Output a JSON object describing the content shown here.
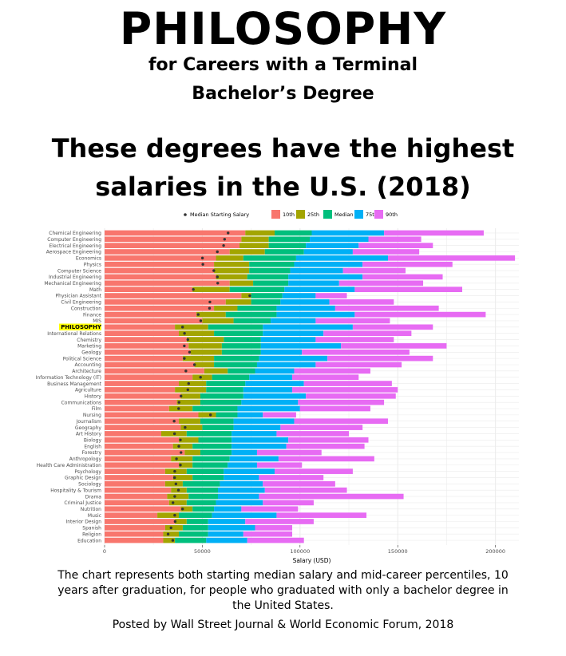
{
  "header": {
    "title": "PHILOSOPHY",
    "subtitle_line1": "for Careers with a Terminal",
    "subtitle_line2": "Bachelor’s Degree",
    "headline_line1": "These degrees have the highest",
    "headline_line2": "salaries in the U.S. (2018)"
  },
  "caption": {
    "line1": "The chart represents both starting median salary and mid-career percentiles, 10",
    "line2": "years after graduation, for people who graduated with only a bachelor degree in",
    "line3": "the United States.",
    "line4": "Posted by Wall Street Journal & World Economic Forum, 2018"
  },
  "chart_data": {
    "type": "bar",
    "orientation": "horizontal",
    "stacked": true,
    "xlabel": "Salary (USD)",
    "ylabel": "",
    "xlim": [
      0,
      212000
    ],
    "xticks": [
      0,
      50000,
      100000,
      150000,
      200000
    ],
    "xtick_labels": [
      "0",
      "50000",
      "100000",
      "150000",
      "200000"
    ],
    "grid": true,
    "legend_position": "top",
    "highlight": "PHILOSOPHY",
    "colors": {
      "10th": "#F8766D",
      "25th": "#A3A500",
      "Median": "#00BF7D",
      "75th": "#00B0F6",
      "90th": "#E76BF3",
      "highlight_bg": "#FFFF00"
    },
    "legend": {
      "marker": "Median Starting Salary",
      "entries": [
        "10th",
        "25th",
        "Median",
        "75th",
        "90th"
      ]
    },
    "series_keys": [
      "p10",
      "p25",
      "median",
      "p75",
      "p90"
    ],
    "categories": [
      "Chemical Engineering",
      "Computer Engineering",
      "Electrical Engineering",
      "Aerospace Engineering",
      "Economics",
      "Physics",
      "Computer Science",
      "Industrial Engineering",
      "Mechanical Engineering",
      "Math",
      "Physician Assistant",
      "Civil Engineering",
      "Construction",
      "Finance",
      "MIS",
      "PHILOSOPHY",
      "International Relations",
      "Chemistry",
      "Marketing",
      "Geology",
      "Political Science",
      "Accounting",
      "Architecture",
      "Information Technology (IT)",
      "Business Management",
      "Agriculture",
      "History",
      "Communications",
      "Film",
      "Nursing",
      "Journalism",
      "Geography",
      "Art History",
      "Biology",
      "English",
      "Forestry",
      "Anthropology",
      "Health Care Administration",
      "Psychology",
      "Graphic Design",
      "Sociology",
      "Hospitality & Tourism",
      "Drama",
      "Criminal Justice",
      "Nutrition",
      "Music",
      "Interior Design",
      "Spanish",
      "Religion",
      "Education"
    ],
    "rows": [
      {
        "p10": 72000,
        "p25": 87000,
        "median": 106000,
        "p75": 143000,
        "p90": 194000,
        "start": 63200
      },
      {
        "p10": 70000,
        "p25": 84000,
        "median": 105000,
        "p75": 135000,
        "p90": 162000,
        "start": 61400
      },
      {
        "p10": 69000,
        "p25": 84000,
        "median": 103000,
        "p75": 130000,
        "p90": 168000,
        "start": 60900
      },
      {
        "p10": 64000,
        "p25": 82000,
        "median": 102000,
        "p75": 127000,
        "p90": 161000,
        "start": 57700
      },
      {
        "p10": 57000,
        "p25": 71000,
        "median": 98000,
        "p75": 145000,
        "p90": 210000,
        "start": 50100
      },
      {
        "p10": 56000,
        "p25": 74000,
        "median": 97000,
        "p75": 132000,
        "p90": 178000,
        "start": 50300
      },
      {
        "p10": 56000,
        "p25": 74000,
        "median": 95000,
        "p75": 122000,
        "p90": 154000,
        "start": 55900
      },
      {
        "p10": 57000,
        "p25": 73000,
        "median": 94000,
        "p75": 132000,
        "p90": 173000,
        "start": 57700
      },
      {
        "p10": 64000,
        "p25": 76000,
        "median": 94000,
        "p75": 120000,
        "p90": 163000,
        "start": 57900
      },
      {
        "p10": 45000,
        "p25": 64000,
        "median": 92000,
        "p75": 128000,
        "p90": 183000,
        "start": 45400
      },
      {
        "p10": 70000,
        "p25": 75000,
        "median": 91000,
        "p75": 108000,
        "p90": 124000,
        "start": 74300
      },
      {
        "p10": 62000,
        "p25": 75000,
        "median": 90000,
        "p75": 115000,
        "p90": 148000,
        "start": 53900
      },
      {
        "p10": 56000,
        "p25": 68000,
        "median": 88000,
        "p75": 118000,
        "p90": 171000,
        "start": 53700
      },
      {
        "p10": 47000,
        "p25": 62000,
        "median": 88000,
        "p75": 128000,
        "p90": 195000,
        "start": 47900
      },
      {
        "p10": 50000,
        "p25": 66000,
        "median": 85000,
        "p75": 108000,
        "p90": 146000,
        "start": 49200
      },
      {
        "p10": 36000,
        "p25": 53000,
        "median": 81000,
        "p75": 127000,
        "p90": 168000,
        "start": 39900
      },
      {
        "p10": 38000,
        "p25": 56000,
        "median": 81000,
        "p75": 112000,
        "p90": 157000,
        "start": 40900
      },
      {
        "p10": 42000,
        "p25": 61000,
        "median": 80000,
        "p75": 108000,
        "p90": 148000,
        "start": 42600
      },
      {
        "p10": 43000,
        "p25": 60000,
        "median": 80000,
        "p75": 121000,
        "p90": 175000,
        "start": 40800
      },
      {
        "p10": 44000,
        "p25": 60000,
        "median": 80000,
        "p75": 101000,
        "p90": 156000,
        "start": 43500
      },
      {
        "p10": 40000,
        "p25": 56000,
        "median": 79000,
        "p75": 114000,
        "p90": 168000,
        "start": 40800
      },
      {
        "p10": 46000,
        "p25": 56000,
        "median": 78000,
        "p75": 108000,
        "p90": 152000,
        "start": 46000
      },
      {
        "p10": 51000,
        "p25": 63000,
        "median": 77000,
        "p75": 97000,
        "p90": 136000,
        "start": 41600
      },
      {
        "p10": 45000,
        "p25": 55000,
        "median": 74000,
        "p75": 96000,
        "p90": 130000,
        "start": 49100
      },
      {
        "p10": 38000,
        "p25": 52000,
        "median": 72000,
        "p75": 102000,
        "p90": 147000,
        "start": 43000
      },
      {
        "p10": 36000,
        "p25": 52000,
        "median": 71000,
        "p75": 96000,
        "p90": 150000,
        "start": 42600
      },
      {
        "p10": 39000,
        "p25": 49000,
        "median": 71000,
        "p75": 103000,
        "p90": 149000,
        "start": 39100
      },
      {
        "p10": 37000,
        "p25": 49000,
        "median": 70000,
        "p75": 99000,
        "p90": 143000,
        "start": 38100
      },
      {
        "p10": 33000,
        "p25": 45000,
        "median": 68000,
        "p75": 100000,
        "p90": 136000,
        "start": 37900
      },
      {
        "p10": 48000,
        "p25": 57000,
        "median": 68000,
        "p75": 81000,
        "p90": 98000,
        "start": 54200
      },
      {
        "p10": 38000,
        "p25": 49000,
        "median": 66000,
        "p75": 97000,
        "p90": 145000,
        "start": 35600
      },
      {
        "p10": 39000,
        "p25": 50000,
        "median": 66000,
        "p75": 90000,
        "p90": 132000,
        "start": 41200
      },
      {
        "p10": 29000,
        "p25": 42000,
        "median": 65000,
        "p75": 88000,
        "p90": 125000,
        "start": 35800
      },
      {
        "p10": 38000,
        "p25": 48000,
        "median": 65000,
        "p75": 94000,
        "p90": 135000,
        "start": 38800
      },
      {
        "p10": 35000,
        "p25": 45000,
        "median": 65000,
        "p75": 93000,
        "p90": 133000,
        "start": 38000
      },
      {
        "p10": 41000,
        "p25": 49000,
        "median": 65000,
        "p75": 78000,
        "p90": 111000,
        "start": 39100
      },
      {
        "p10": 34000,
        "p25": 45000,
        "median": 64000,
        "p75": 89000,
        "p90": 138000,
        "start": 36800
      },
      {
        "p10": 38000,
        "p25": 45000,
        "median": 63000,
        "p75": 78000,
        "p90": 101000,
        "start": 38800
      },
      {
        "p10": 31000,
        "p25": 42000,
        "median": 61000,
        "p75": 87000,
        "p90": 127000,
        "start": 35900
      },
      {
        "p10": 35000,
        "p25": 45000,
        "median": 61000,
        "p75": 79000,
        "p90": 112000,
        "start": 35800
      },
      {
        "p10": 31000,
        "p25": 40000,
        "median": 59000,
        "p75": 81000,
        "p90": 118000,
        "start": 36500
      },
      {
        "p10": 34000,
        "p25": 42000,
        "median": 58000,
        "p75": 82000,
        "p90": 124000,
        "start": 37800
      },
      {
        "p10": 32000,
        "p25": 43000,
        "median": 58000,
        "p75": 79000,
        "p90": 153000,
        "start": 35900
      },
      {
        "p10": 33000,
        "p25": 42000,
        "median": 57000,
        "p75": 81000,
        "p90": 107000,
        "start": 35000
      },
      {
        "p10": 39000,
        "p25": 45000,
        "median": 56000,
        "p75": 70000,
        "p90": 99000,
        "start": 39900
      },
      {
        "p10": 27000,
        "p25": 38000,
        "median": 55000,
        "p75": 88000,
        "p90": 134000,
        "start": 35900
      },
      {
        "p10": 36000,
        "p25": 42000,
        "median": 53000,
        "p75": 72000,
        "p90": 107000,
        "start": 36100
      },
      {
        "p10": 31000,
        "p25": 40000,
        "median": 53000,
        "p75": 77000,
        "p90": 96000,
        "start": 34000
      },
      {
        "p10": 30000,
        "p25": 38000,
        "median": 53000,
        "p75": 71000,
        "p90": 96000,
        "start": 32500
      },
      {
        "p10": 30000,
        "p25": 36000,
        "median": 52000,
        "p75": 73000,
        "p90": 102000,
        "start": 34900
      }
    ]
  }
}
